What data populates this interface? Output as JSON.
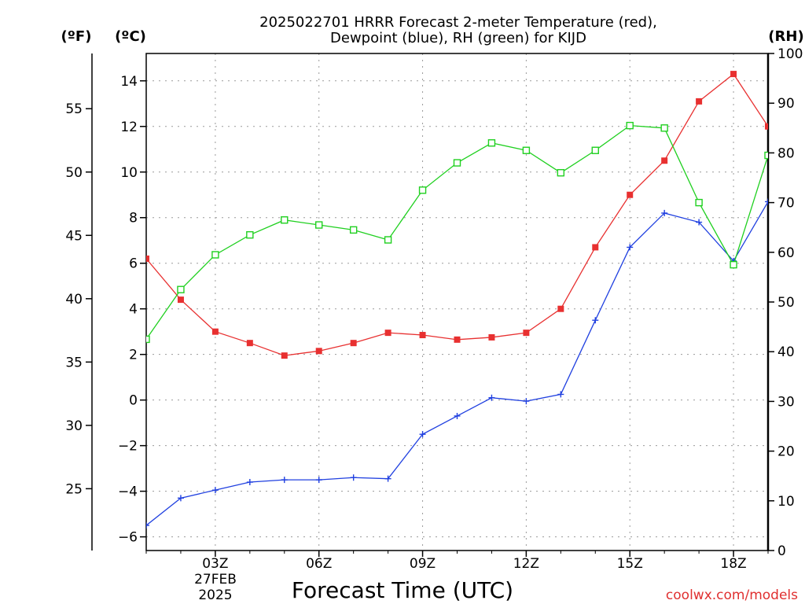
{
  "chart_data": {
    "type": "line",
    "title_line1": "2025022701 HRRR Forecast 2-meter Temperature (red),",
    "title_line2": "Dewpoint (blue), RH (green) for KIJD",
    "xlabel": "Forecast Time (UTC)",
    "left_unit_f": "(ºF)",
    "left_unit_c": "(ºC)",
    "right_unit": "(RH)",
    "date_label_1": "27FEB",
    "date_label_2": "2025",
    "watermark": "coolwx.com/models",
    "x_hours": [
      1,
      2,
      3,
      4,
      5,
      6,
      7,
      8,
      9,
      10,
      11,
      12,
      13,
      14,
      15,
      16,
      17,
      18,
      19
    ],
    "x_ticks": [
      {
        "hour": 3,
        "label": "03Z"
      },
      {
        "hour": 6,
        "label": "06Z"
      },
      {
        "hour": 9,
        "label": "09Z"
      },
      {
        "hour": 12,
        "label": "12Z"
      },
      {
        "hour": 15,
        "label": "15Z"
      },
      {
        "hour": 18,
        "label": "18Z"
      }
    ],
    "xlim": [
      1,
      19
    ],
    "y_c_ticks": [
      "-6",
      "-4",
      "-2",
      "0",
      "2",
      "4",
      "6",
      "8",
      "10",
      "12",
      "14"
    ],
    "ylim_c": [
      -6.6,
      15.2
    ],
    "y_f_ticks": [
      "25",
      "30",
      "35",
      "40",
      "45",
      "50",
      "55"
    ],
    "y_rh_ticks": [
      "0",
      "10",
      "20",
      "30",
      "40",
      "50",
      "60",
      "70",
      "80",
      "90",
      "100"
    ],
    "ylim_rh": [
      0,
      100
    ],
    "grid": true,
    "series": [
      {
        "axis": "celsius",
        "color": "#e83030",
        "marker": "filled-square",
        "values": [
          6.2,
          4.4,
          3.0,
          2.5,
          1.95,
          2.15,
          2.5,
          2.95,
          2.85,
          2.65,
          2.75,
          2.95,
          4.0,
          6.7,
          9.0,
          10.5,
          13.1,
          14.3,
          12.0
        ]
      },
      {
        "axis": "celsius",
        "color": "#2040e0",
        "marker": "plus",
        "values": [
          -5.5,
          -4.3,
          -3.95,
          -3.6,
          -3.5,
          -3.5,
          -3.4,
          -3.45,
          -1.5,
          -0.7,
          0.1,
          -0.05,
          0.25,
          3.5,
          6.7,
          8.2,
          7.8,
          6.1,
          8.7
        ]
      },
      {
        "axis": "rh",
        "color": "#20d020",
        "marker": "open-square",
        "values": [
          42.5,
          52.5,
          59.5,
          63.5,
          66.5,
          65.5,
          64.5,
          62.5,
          72.5,
          78.0,
          82.0,
          80.5,
          76.0,
          80.5,
          85.5,
          85.0,
          70.0,
          57.5,
          79.5
        ]
      }
    ]
  }
}
